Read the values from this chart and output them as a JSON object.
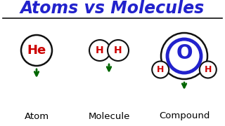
{
  "title": "Atoms vs Molecules",
  "title_color": "#2222cc",
  "title_fontsize": 17,
  "bg_color": "#ffffff",
  "arrow_color": "#006600",
  "label_color": "#000000",
  "label_fontsize": 9.5,
  "atom_label": "Atom",
  "molecule_label": "Molecule",
  "compound_label": "Compound",
  "he_text": "He",
  "h_text": "H",
  "o_text": "O",
  "element_color": "#cc0000",
  "o_circle_color": "#2222cc",
  "black": "#111111",
  "fig_w": 3.2,
  "fig_h": 1.8,
  "dpi": 100
}
